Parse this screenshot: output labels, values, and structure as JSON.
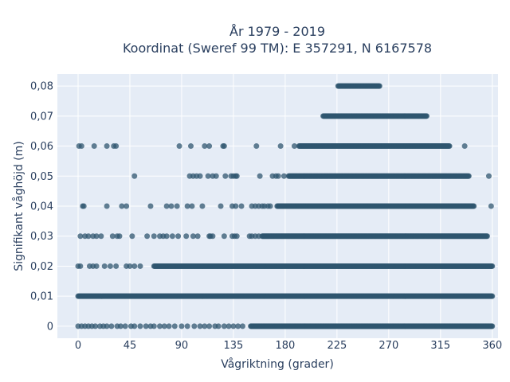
{
  "chart_data": {
    "type": "scatter",
    "title_lines": [
      "År 1979 - 2019",
      "Koordinat (Sweref 99 TM): E 357291, N 6167578"
    ],
    "xlabel": "Vågriktning (grader)",
    "ylabel": "Signifikant våghöjd (m)",
    "xlim": [
      -18,
      365
    ],
    "ylim": [
      -0.004,
      0.084
    ],
    "x_ticks": [
      0,
      45,
      90,
      135,
      180,
      225,
      270,
      315,
      360
    ],
    "x_tick_labels": [
      "0",
      "45",
      "90",
      "135",
      "180",
      "225",
      "270",
      "315",
      "360"
    ],
    "y_ticks": [
      0,
      0.01,
      0.02,
      0.03,
      0.04,
      0.05,
      0.06,
      0.07,
      0.08
    ],
    "y_tick_labels": [
      "0",
      "0,01",
      "0,02",
      "0,03",
      "0,04",
      "0,05",
      "0,06",
      "0,07",
      "0,08"
    ],
    "grid": true,
    "legend": "none",
    "colors": {
      "background": "#e5ecf6",
      "grid": "#ffffff",
      "marker": "#2f566f",
      "text": "#2a3f5f"
    },
    "series": [
      {
        "clusters": [
          {
            "y": 0.08,
            "x_range": [
              226,
              262
            ]
          },
          {
            "y": 0.07,
            "x_range": [
              213,
              303
            ]
          },
          {
            "y": 0.06,
            "x_range": [
              192,
              323
            ]
          },
          {
            "y": 0.05,
            "x_range": [
              183,
              340
            ]
          },
          {
            "y": 0.04,
            "x_range": [
              173,
              344
            ]
          },
          {
            "y": 0.03,
            "x_range": [
              160,
              356
            ]
          },
          {
            "y": 0.02,
            "x_range": [
              66,
              360
            ]
          },
          {
            "y": 0.01,
            "x_range": [
              0,
              360
            ]
          },
          {
            "y": 0.0,
            "x_range": [
              150,
              360
            ]
          }
        ],
        "points": [
          [
            0.8,
            0.06
          ],
          [
            3,
            0.06
          ],
          [
            14,
            0.06
          ],
          [
            25,
            0.06
          ],
          [
            31,
            0.06
          ],
          [
            33,
            0.06
          ],
          [
            88,
            0.06
          ],
          [
            98,
            0.06
          ],
          [
            110,
            0.06
          ],
          [
            114,
            0.06
          ],
          [
            126,
            0.06
          ],
          [
            127,
            0.06
          ],
          [
            155,
            0.06
          ],
          [
            176,
            0.06
          ],
          [
            188,
            0.06
          ],
          [
            336,
            0.06
          ],
          [
            49,
            0.05
          ],
          [
            97,
            0.05
          ],
          [
            100,
            0.05
          ],
          [
            103,
            0.05
          ],
          [
            106,
            0.05
          ],
          [
            113,
            0.05
          ],
          [
            117,
            0.05
          ],
          [
            120,
            0.05
          ],
          [
            128,
            0.05
          ],
          [
            133,
            0.05
          ],
          [
            135,
            0.05
          ],
          [
            137,
            0.05
          ],
          [
            138,
            0.05
          ],
          [
            158,
            0.05
          ],
          [
            169,
            0.05
          ],
          [
            172,
            0.05
          ],
          [
            174,
            0.05
          ],
          [
            179,
            0.05
          ],
          [
            357,
            0.05
          ],
          [
            4,
            0.04
          ],
          [
            5,
            0.04
          ],
          [
            25,
            0.04
          ],
          [
            38,
            0.04
          ],
          [
            42,
            0.04
          ],
          [
            63,
            0.04
          ],
          [
            77,
            0.04
          ],
          [
            81,
            0.04
          ],
          [
            86,
            0.04
          ],
          [
            95,
            0.04
          ],
          [
            99,
            0.04
          ],
          [
            108,
            0.04
          ],
          [
            124,
            0.04
          ],
          [
            134,
            0.04
          ],
          [
            137,
            0.04
          ],
          [
            142,
            0.04
          ],
          [
            151,
            0.04
          ],
          [
            154,
            0.04
          ],
          [
            157,
            0.04
          ],
          [
            160,
            0.04
          ],
          [
            162,
            0.04
          ],
          [
            165,
            0.04
          ],
          [
            167,
            0.04
          ],
          [
            359,
            0.04
          ],
          [
            2,
            0.03
          ],
          [
            6,
            0.03
          ],
          [
            9,
            0.03
          ],
          [
            13,
            0.03
          ],
          [
            16,
            0.03
          ],
          [
            20,
            0.03
          ],
          [
            30,
            0.03
          ],
          [
            34,
            0.03
          ],
          [
            36,
            0.03
          ],
          [
            47,
            0.03
          ],
          [
            60,
            0.03
          ],
          [
            66,
            0.03
          ],
          [
            71,
            0.03
          ],
          [
            74,
            0.03
          ],
          [
            77,
            0.03
          ],
          [
            82,
            0.03
          ],
          [
            87,
            0.03
          ],
          [
            94,
            0.03
          ],
          [
            100,
            0.03
          ],
          [
            104,
            0.03
          ],
          [
            114,
            0.03
          ],
          [
            115,
            0.03
          ],
          [
            117,
            0.03
          ],
          [
            127,
            0.03
          ],
          [
            134,
            0.03
          ],
          [
            136,
            0.03
          ],
          [
            138,
            0.03
          ],
          [
            149,
            0.03
          ],
          [
            151,
            0.03
          ],
          [
            154,
            0.03
          ],
          [
            157,
            0.03
          ],
          [
            0,
            0.02
          ],
          [
            2,
            0.02
          ],
          [
            10,
            0.02
          ],
          [
            13,
            0.02
          ],
          [
            16,
            0.02
          ],
          [
            23,
            0.02
          ],
          [
            28,
            0.02
          ],
          [
            33,
            0.02
          ],
          [
            42,
            0.02
          ],
          [
            45,
            0.02
          ],
          [
            49,
            0.02
          ],
          [
            54,
            0.02
          ],
          [
            0,
            0.0
          ],
          [
            3,
            0.0
          ],
          [
            6,
            0.0
          ],
          [
            9,
            0.0
          ],
          [
            12,
            0.0
          ],
          [
            15,
            0.0
          ],
          [
            19,
            0.0
          ],
          [
            22,
            0.0
          ],
          [
            25,
            0.0
          ],
          [
            29,
            0.0
          ],
          [
            34,
            0.0
          ],
          [
            37,
            0.0
          ],
          [
            41,
            0.0
          ],
          [
            46,
            0.0
          ],
          [
            49,
            0.0
          ],
          [
            54,
            0.0
          ],
          [
            59,
            0.0
          ],
          [
            63,
            0.0
          ],
          [
            66,
            0.0
          ],
          [
            71,
            0.0
          ],
          [
            75,
            0.0
          ],
          [
            79,
            0.0
          ],
          [
            84,
            0.0
          ],
          [
            90,
            0.0
          ],
          [
            95,
            0.0
          ],
          [
            101,
            0.0
          ],
          [
            106,
            0.0
          ],
          [
            110,
            0.0
          ],
          [
            114,
            0.0
          ],
          [
            119,
            0.0
          ],
          [
            122,
            0.0
          ],
          [
            127,
            0.0
          ],
          [
            131,
            0.0
          ],
          [
            135,
            0.0
          ],
          [
            139,
            0.0
          ],
          [
            143,
            0.0
          ]
        ]
      }
    ]
  }
}
